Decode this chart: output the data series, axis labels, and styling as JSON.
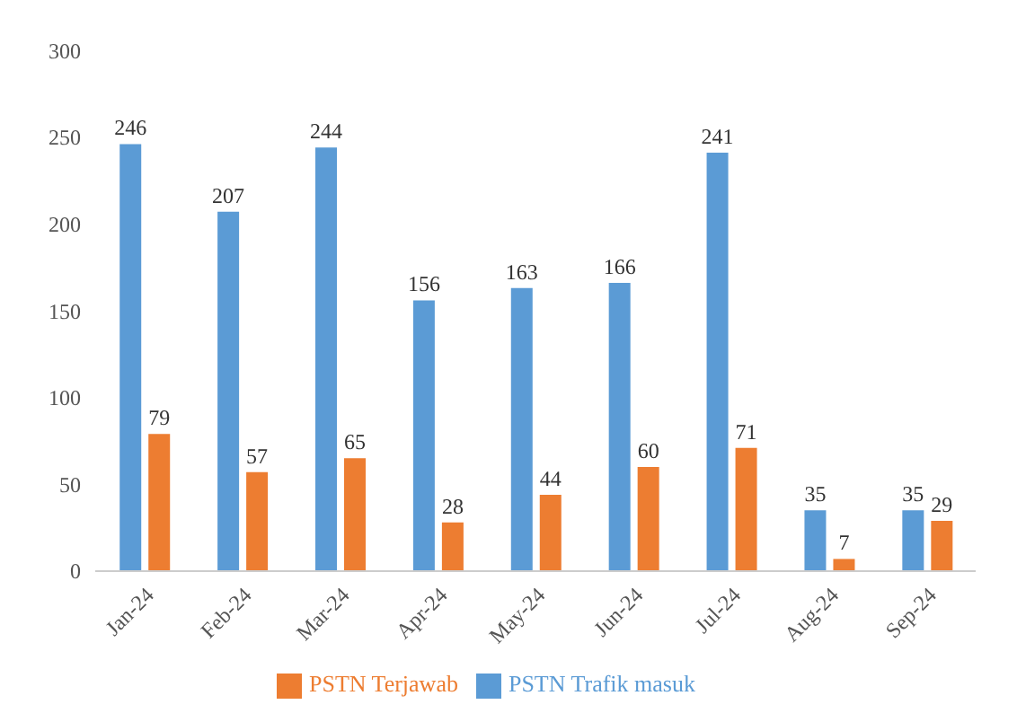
{
  "chart_data": {
    "type": "bar",
    "categories": [
      "Jan-24",
      "Feb-24",
      "Mar-24",
      "Apr-24",
      "May-24",
      "Jun-24",
      "Jul-24",
      "Aug-24",
      "Sep-24"
    ],
    "series": [
      {
        "name": "PSTN Trafik masuk",
        "color": "#5b9bd5",
        "values": [
          246,
          207,
          244,
          156,
          163,
          166,
          241,
          35,
          35
        ]
      },
      {
        "name": "PSTN Terjawab",
        "color": "#ed7d31",
        "values": [
          79,
          57,
          65,
          28,
          44,
          60,
          71,
          7,
          29
        ]
      }
    ],
    "ylim": [
      0,
      300
    ],
    "yticks": [
      0,
      50,
      100,
      150,
      200,
      250,
      300
    ],
    "data_labels": true,
    "legend": "bottom",
    "grid": false
  }
}
